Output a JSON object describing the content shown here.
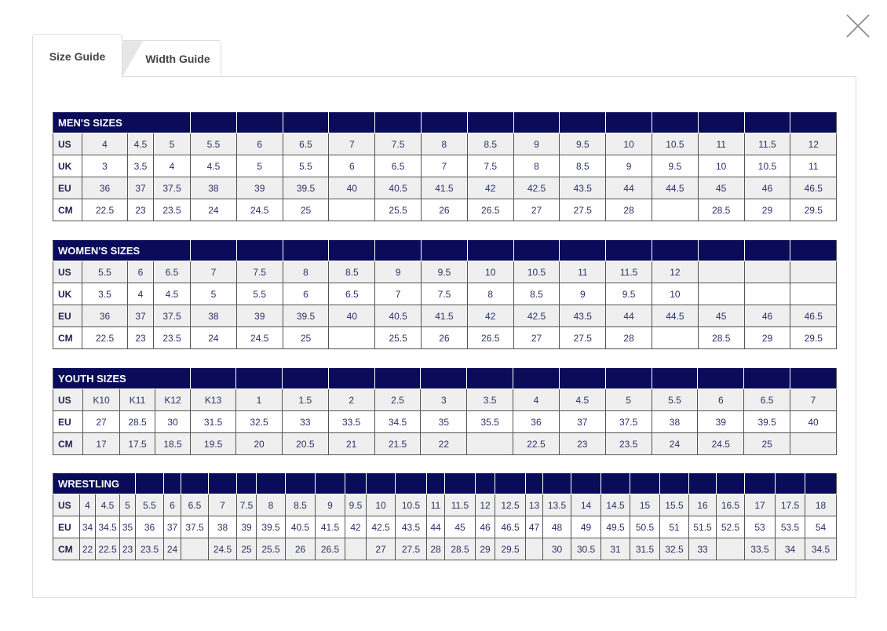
{
  "tabs": [
    {
      "label": "Size Guide",
      "active": true
    },
    {
      "label": "Width Guide",
      "active": false
    }
  ],
  "colors": {
    "header": "#0a0c5a",
    "stripe": "#efefef"
  },
  "tables": [
    {
      "title": "MEN'S SIZES",
      "rows": [
        {
          "label": "US",
          "cells": [
            "4",
            "4.5",
            "5",
            "5.5",
            "6",
            "6.5",
            "7",
            "7.5",
            "8",
            "8.5",
            "9",
            "9.5",
            "10",
            "10.5",
            "11",
            "11.5",
            "12"
          ]
        },
        {
          "label": "UK",
          "cells": [
            "3",
            "3.5",
            "4",
            "4.5",
            "5",
            "5.5",
            "6",
            "6.5",
            "7",
            "7.5",
            "8",
            "8.5",
            "9",
            "9.5",
            "10",
            "10.5",
            "11"
          ]
        },
        {
          "label": "EU",
          "cells": [
            "36",
            "37",
            "37.5",
            "38",
            "39",
            "39.5",
            "40",
            "40.5",
            "41.5",
            "42",
            "42.5",
            "43.5",
            "44",
            "44.5",
            "45",
            "46",
            "46.5"
          ]
        },
        {
          "label": "CM",
          "cells": [
            "22.5",
            "23",
            "23.5",
            "24",
            "24.5",
            "25",
            "",
            "25.5",
            "26",
            "26.5",
            "27",
            "27.5",
            "28",
            "",
            "28.5",
            "29",
            "29.5"
          ]
        }
      ]
    },
    {
      "title": "WOMEN'S SIZES",
      "rows": [
        {
          "label": "US",
          "cells": [
            "5.5",
            "6",
            "6.5",
            "7",
            "7.5",
            "8",
            "8.5",
            "9",
            "9.5",
            "10",
            "10.5",
            "11",
            "11.5",
            "12",
            "",
            "",
            ""
          ]
        },
        {
          "label": "UK",
          "cells": [
            "3.5",
            "4",
            "4.5",
            "5",
            "5.5",
            "6",
            "6.5",
            "7",
            "7.5",
            "8",
            "8.5",
            "9",
            "9.5",
            "10",
            "",
            "",
            ""
          ]
        },
        {
          "label": "EU",
          "cells": [
            "36",
            "37",
            "37.5",
            "38",
            "39",
            "39.5",
            "40",
            "40.5",
            "41.5",
            "42",
            "42.5",
            "43.5",
            "44",
            "44.5",
            "45",
            "46",
            "46.5"
          ]
        },
        {
          "label": "CM",
          "cells": [
            "22.5",
            "23",
            "23.5",
            "24",
            "24.5",
            "25",
            "",
            "25.5",
            "26",
            "26.5",
            "27",
            "27.5",
            "28",
            "",
            "28.5",
            "29",
            "29.5"
          ]
        }
      ]
    },
    {
      "title": "YOUTH SIZES",
      "rows": [
        {
          "label": "US",
          "cells": [
            "K10",
            "K11",
            "K12",
            "K13",
            "1",
            "1.5",
            "2",
            "2.5",
            "3",
            "3.5",
            "4",
            "4.5",
            "5",
            "5.5",
            "6",
            "6.5",
            "7"
          ]
        },
        {
          "label": "EU",
          "cells": [
            "27",
            "28.5",
            "30",
            "31.5",
            "32.5",
            "33",
            "33.5",
            "34.5",
            "35",
            "35.5",
            "36",
            "37",
            "37.5",
            "38",
            "39",
            "39.5",
            "40"
          ]
        },
        {
          "label": "CM",
          "cells": [
            "17",
            "17.5",
            "18.5",
            "19.5",
            "20",
            "20.5",
            "21",
            "21.5",
            "22",
            "",
            "22.5",
            "23",
            "23.5",
            "24",
            "24.5",
            "25",
            ""
          ]
        }
      ]
    },
    {
      "title": "WRESTLING",
      "rows": [
        {
          "label": "US",
          "cells": [
            "4",
            "4.5",
            "5",
            "5.5",
            "6",
            "6.5",
            "7",
            "7.5",
            "8",
            "8.5",
            "9",
            "9.5",
            "10",
            "10.5",
            "11",
            "11.5",
            "12",
            "12.5",
            "13",
            "13.5",
            "14",
            "14.5",
            "15",
            "15.5",
            "16",
            "16.5",
            "17",
            "17.5",
            "18"
          ]
        },
        {
          "label": "EU",
          "cells": [
            "34",
            "34.5",
            "35",
            "36",
            "37",
            "37.5",
            "38",
            "39",
            "39.5",
            "40.5",
            "41.5",
            "42",
            "42.5",
            "43.5",
            "44",
            "45",
            "46",
            "46.5",
            "47",
            "48",
            "49",
            "49.5",
            "50.5",
            "51",
            "51.5",
            "52.5",
            "53",
            "53.5",
            "54"
          ]
        },
        {
          "label": "CM",
          "cells": [
            "22",
            "22.5",
            "23",
            "23.5",
            "24",
            "",
            "24.5",
            "25",
            "25.5",
            "26",
            "26.5",
            "",
            "27",
            "27.5",
            "28",
            "28.5",
            "29",
            "29.5",
            "",
            "30",
            "30.5",
            "31",
            "31.5",
            "32.5",
            "33",
            "",
            "33.5",
            "34",
            "34.5"
          ]
        }
      ]
    }
  ]
}
